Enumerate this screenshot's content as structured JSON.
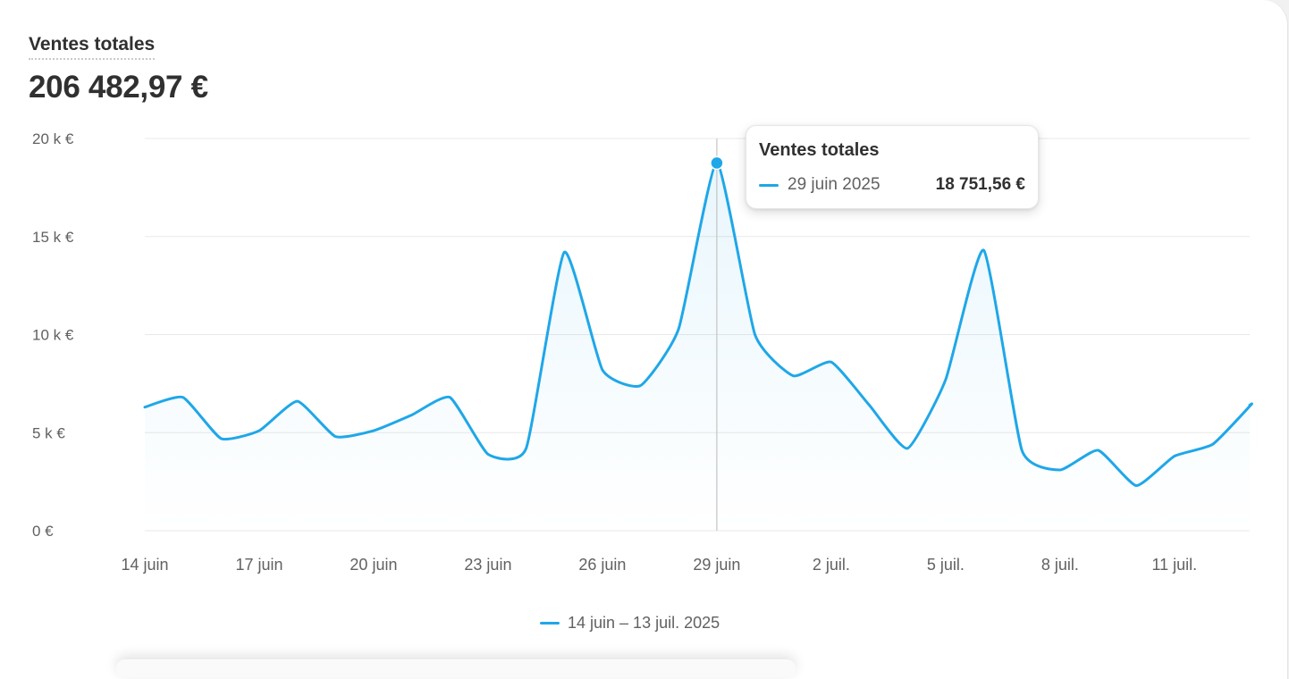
{
  "card": {
    "title": "Ventes totales",
    "total": "206 482,97 €"
  },
  "colors": {
    "series": "#1fa7e8",
    "grid": "#e8e8e8",
    "axis_text": "#616161",
    "crosshair": "#c4c4c4"
  },
  "tooltip": {
    "title": "Ventes totales",
    "date": "29 juin 2025",
    "value": "18 751,56 €"
  },
  "legend": {
    "label": "14 juin – 13 juil. 2025"
  },
  "chart_data": {
    "type": "area",
    "ylim": [
      0,
      20000
    ],
    "yticks": [
      {
        "value": 0,
        "label": "0 €"
      },
      {
        "value": 5000,
        "label": "5 k €"
      },
      {
        "value": 10000,
        "label": "10 k €"
      },
      {
        "value": 15000,
        "label": "15 k €"
      },
      {
        "value": 20000,
        "label": "20 k €"
      }
    ],
    "xtick_labels": [
      "14 juin",
      "17 juin",
      "20 juin",
      "23 juin",
      "26 juin",
      "29 juin",
      "2 juil.",
      "5 juil.",
      "8 juil.",
      "11 juil."
    ],
    "xtick_every": 3,
    "grid": true,
    "legend_position": "bottom-center",
    "highlight_index": 15,
    "series": [
      {
        "name": "14 juin – 13 juil. 2025",
        "x": [
          "2025-06-14",
          "2025-06-15",
          "2025-06-16",
          "2025-06-17",
          "2025-06-18",
          "2025-06-19",
          "2025-06-20",
          "2025-06-21",
          "2025-06-22",
          "2025-06-23",
          "2025-06-24",
          "2025-06-25",
          "2025-06-26",
          "2025-06-27",
          "2025-06-28",
          "2025-06-29",
          "2025-06-30",
          "2025-07-01",
          "2025-07-02",
          "2025-07-03",
          "2025-07-04",
          "2025-07-05",
          "2025-07-06",
          "2025-07-07",
          "2025-07-08",
          "2025-07-09",
          "2025-07-10",
          "2025-07-11",
          "2025-07-12",
          "2025-07-13"
        ],
        "values": [
          6300,
          6800,
          4700,
          5100,
          6600,
          4800,
          5100,
          5900,
          6800,
          3900,
          4200,
          14200,
          8200,
          7400,
          10300,
          18751.56,
          10000,
          7900,
          8600,
          6400,
          4200,
          7700,
          14300,
          4100,
          3100,
          4100,
          2300,
          3800,
          4400,
          6400
        ]
      }
    ]
  }
}
